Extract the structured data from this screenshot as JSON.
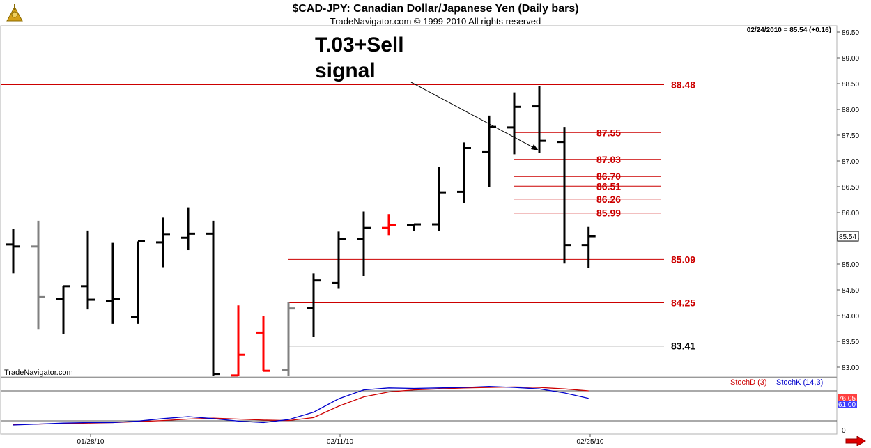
{
  "header": {
    "title": "$CAD-JPY:  Canadian Dollar/Japanese Yen  (Daily bars)",
    "subtitle": "TradeNavigator.com © 1999-2010 All rights reserved",
    "quote": "02/24/2010 = 85.54 (+0.16)"
  },
  "annotation": {
    "line1": "T.03+Sell",
    "line2": "signal"
  },
  "brand": "TradeNavigator.com",
  "colors": {
    "up_bar": "#000000",
    "red_bar": "#ff0000",
    "grey_bar": "#808080",
    "level_line": "#cc0000",
    "stoch_d": "#cc0000",
    "stoch_k": "#0000cc"
  },
  "icons": {
    "logo": "sextant-logo-icon",
    "next": "right-arrow-icon"
  },
  "chart_data": [
    {
      "type": "ohlc",
      "title": "$CAD-JPY:  Canadian Dollar/Japanese Yen  (Daily bars)",
      "ylim": [
        82.75,
        89.6
      ],
      "y_ticks": [
        "83.00",
        "83.50",
        "84.00",
        "84.50",
        "85.00",
        "85.50",
        "86.00",
        "86.50",
        "87.00",
        "87.50",
        "88.00",
        "88.50",
        "89.00",
        "89.50"
      ],
      "x_ticks": [
        "01/28/10",
        "02/11/10",
        "02/25/10"
      ],
      "last_price_label": "85.54",
      "bars": [
        {
          "o": 85.38,
          "h": 85.68,
          "l": 84.82,
          "c": 85.34,
          "color": "black"
        },
        {
          "o": 85.34,
          "h": 85.84,
          "l": 83.74,
          "c": 84.36,
          "color": "grey"
        },
        {
          "o": 84.32,
          "h": 84.58,
          "l": 83.64,
          "c": 84.57,
          "color": "black"
        },
        {
          "o": 84.57,
          "h": 85.65,
          "l": 84.12,
          "c": 84.31,
          "color": "black"
        },
        {
          "o": 84.28,
          "h": 85.41,
          "l": 83.84,
          "c": 84.32,
          "color": "black"
        },
        {
          "o": 83.97,
          "h": 85.44,
          "l": 83.84,
          "c": 85.44,
          "color": "black"
        },
        {
          "o": 85.42,
          "h": 85.9,
          "l": 84.94,
          "c": 85.57,
          "color": "black"
        },
        {
          "o": 85.51,
          "h": 86.1,
          "l": 85.27,
          "c": 85.59,
          "color": "black"
        },
        {
          "o": 85.59,
          "h": 85.84,
          "l": 82.75,
          "c": 82.87,
          "color": "black"
        },
        {
          "o": 82.84,
          "h": 84.2,
          "l": 82.75,
          "c": 83.24,
          "color": "red"
        },
        {
          "o": 83.67,
          "h": 84.0,
          "l": 82.93,
          "c": 82.93,
          "color": "red"
        },
        {
          "o": 82.94,
          "h": 84.27,
          "l": 82.75,
          "c": 84.14,
          "color": "grey"
        },
        {
          "o": 84.15,
          "h": 84.82,
          "l": 83.59,
          "c": 84.68,
          "color": "black"
        },
        {
          "o": 84.63,
          "h": 85.63,
          "l": 84.52,
          "c": 85.48,
          "color": "black"
        },
        {
          "o": 85.49,
          "h": 86.02,
          "l": 84.77,
          "c": 85.7,
          "color": "black"
        },
        {
          "o": 85.7,
          "h": 85.97,
          "l": 85.55,
          "c": 85.76,
          "color": "red"
        },
        {
          "o": 85.76,
          "h": 85.77,
          "l": 85.64,
          "c": 85.77,
          "color": "black"
        },
        {
          "o": 85.77,
          "h": 86.88,
          "l": 85.64,
          "c": 86.39,
          "color": "black"
        },
        {
          "o": 86.4,
          "h": 87.36,
          "l": 86.19,
          "c": 87.25,
          "color": "black"
        },
        {
          "o": 87.17,
          "h": 87.88,
          "l": 86.49,
          "c": 87.66,
          "color": "black"
        },
        {
          "o": 87.65,
          "h": 88.33,
          "l": 87.13,
          "c": 88.05,
          "color": "black"
        },
        {
          "o": 88.06,
          "h": 88.46,
          "l": 87.15,
          "c": 87.39,
          "color": "black"
        },
        {
          "o": 87.37,
          "h": 87.66,
          "l": 85.01,
          "c": 85.37,
          "color": "black"
        },
        {
          "o": 85.37,
          "h": 85.72,
          "l": 84.92,
          "c": 85.54,
          "color": "black"
        }
      ],
      "levels": [
        {
          "value": 88.48,
          "label": "88.48",
          "color": "#cc0000"
        },
        {
          "value": 87.55,
          "label": "87.55",
          "color": "#cc0000"
        },
        {
          "value": 87.03,
          "label": "87.03",
          "color": "#cc0000"
        },
        {
          "value": 86.7,
          "label": "86.70",
          "color": "#cc0000"
        },
        {
          "value": 86.51,
          "label": "86.51",
          "color": "#cc0000"
        },
        {
          "value": 86.26,
          "label": "86.26",
          "color": "#cc0000"
        },
        {
          "value": 85.99,
          "label": "85.99",
          "color": "#cc0000"
        },
        {
          "value": 85.09,
          "label": "85.09",
          "color": "#cc0000"
        },
        {
          "value": 84.25,
          "label": "84.25",
          "color": "#cc0000"
        },
        {
          "value": 83.41,
          "label": "83.41",
          "color": "#000000"
        }
      ]
    },
    {
      "type": "line",
      "ylim": [
        0,
        100
      ],
      "y_tick": "0",
      "reference_line": 76.05,
      "series": [
        {
          "name": "StochD (3)",
          "color": "#cc0000",
          "last_label": "76.05",
          "values": [
            8,
            9,
            10,
            11,
            12,
            14,
            16,
            19,
            21,
            19,
            17,
            16,
            22,
            45,
            64,
            74,
            78,
            80,
            82,
            83,
            84,
            83,
            80,
            76
          ]
        },
        {
          "name": "StochK (14,3)",
          "color": "#0000cc",
          "last_label": "61.00",
          "values": [
            7,
            9,
            11,
            12,
            12,
            15,
            20,
            24,
            20,
            15,
            12,
            18,
            33,
            60,
            78,
            82,
            81,
            82,
            83,
            85,
            83,
            80,
            72,
            61
          ]
        }
      ]
    }
  ]
}
